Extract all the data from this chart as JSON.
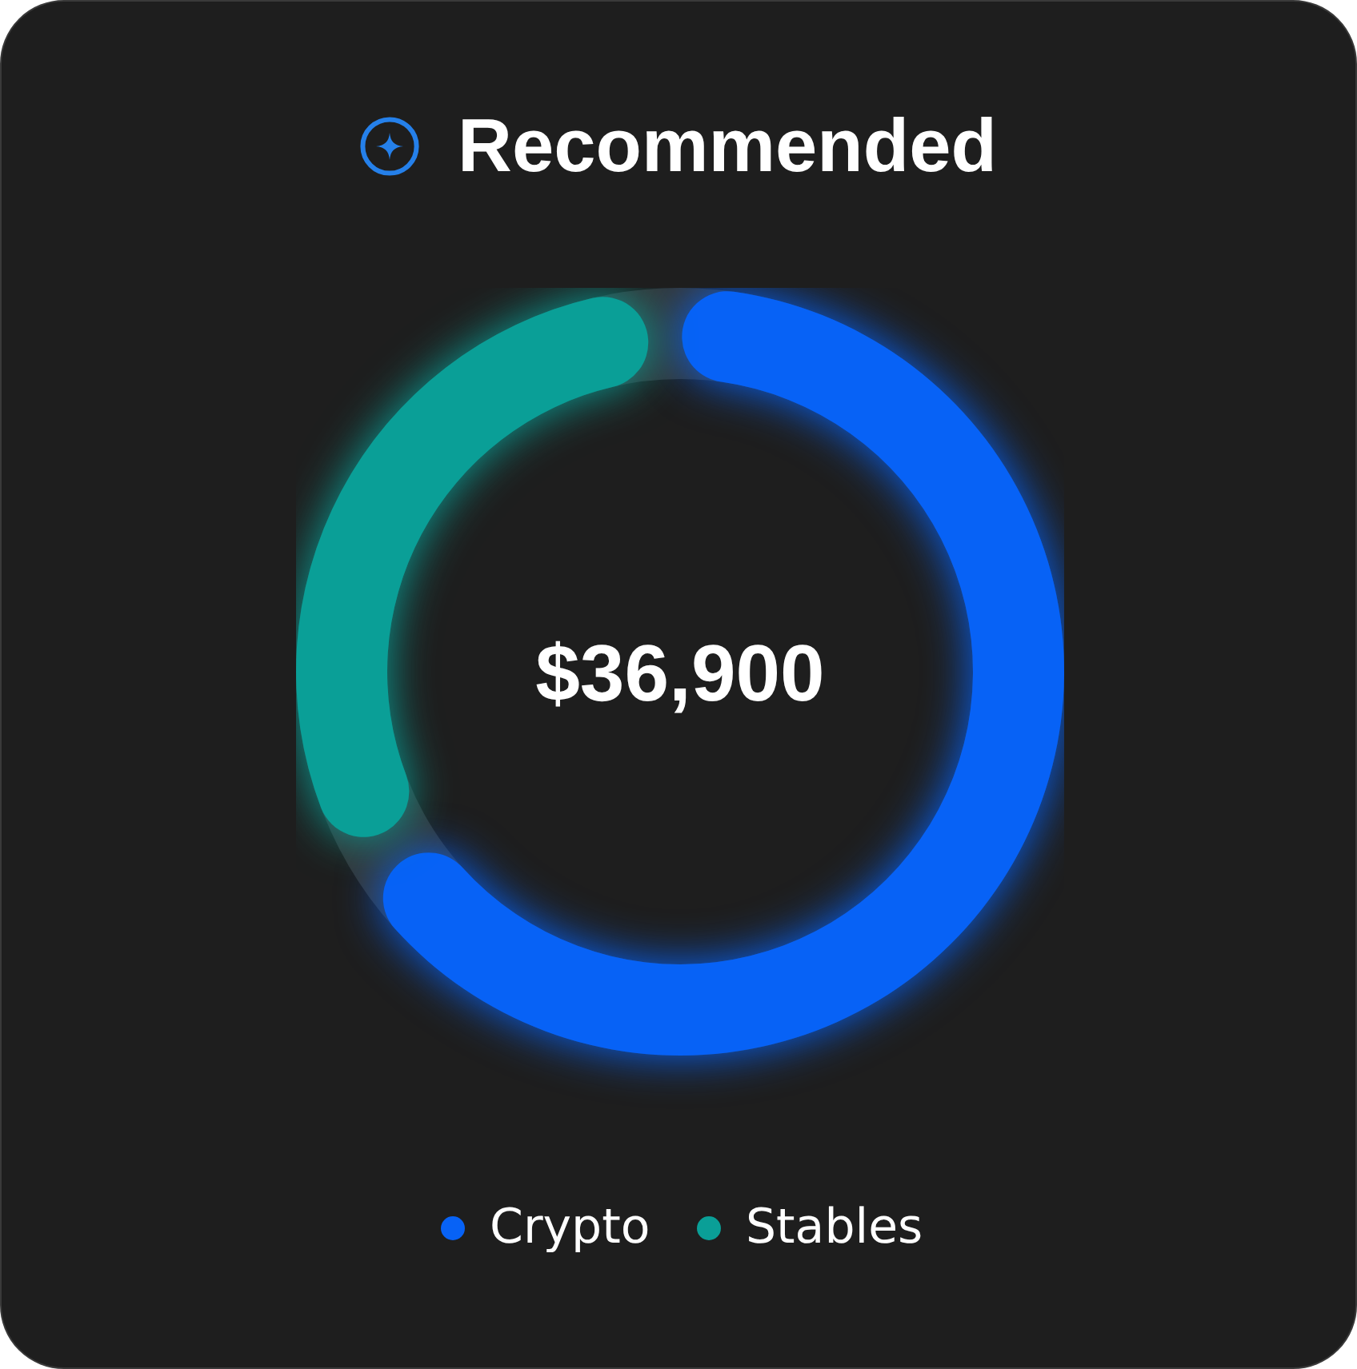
{
  "chart_data": {
    "type": "donut",
    "title": "Recommended",
    "categories": [
      "Crypto",
      "Stables"
    ],
    "values": [
      67,
      33
    ],
    "colors": [
      "#0762f6",
      "#0a9f97"
    ],
    "annotations": [
      "$36,900"
    ],
    "legend": "bottom"
  }
}
